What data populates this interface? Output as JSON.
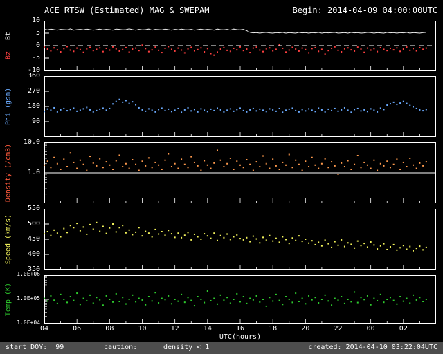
{
  "header": {
    "title": "ACE RTSW (Estimated) MAG & SWEPAM",
    "begin": "Begin: 2014-04-09 04:00:00UTC"
  },
  "footer": {
    "start_doy": "start DOY:  99",
    "caution_label": "caution:",
    "caution_value": "density < 1",
    "created": "created: 2014-04-10 03:22:04UTC"
  },
  "colors": {
    "background": "#000000",
    "frame": "#ffffff",
    "bt": "#f0f0f0",
    "bz": "#ff4040",
    "phi": "#6babff",
    "density": "#ff9a4d",
    "density_label": "#ff5a3c",
    "speed": "#f2f25a",
    "temp": "#2ecc2e",
    "footer_bg": "#4d4d4d",
    "caution": "#ff4040"
  },
  "xaxis": {
    "label": "UTC(hours)",
    "range": [
      4,
      28
    ],
    "x_start": 4.0,
    "x_step": 0.2,
    "n_points": 118,
    "tick_values": [
      4,
      6,
      8,
      10,
      12,
      14,
      16,
      18,
      20,
      22,
      24,
      26
    ],
    "tick_labels": [
      "04",
      "06",
      "08",
      "10",
      "12",
      "14",
      "16",
      "18",
      "20",
      "22",
      "00",
      "02"
    ]
  },
  "chart_data": [
    {
      "id": "mag",
      "type": "scatter",
      "ylabel": [
        {
          "text": "Bt",
          "color": "#f0f0f0"
        },
        {
          "text": "Bz",
          "color": "#ff4040"
        }
      ],
      "yrange": [
        -10,
        10
      ],
      "log": false,
      "yticks": [
        {
          "v": 10,
          "label": "10"
        },
        {
          "v": 5,
          "label": "5"
        },
        {
          "v": 0,
          "label": "0"
        },
        {
          "v": -5,
          "label": "-5"
        },
        {
          "v": -10,
          "label": "-10"
        }
      ],
      "ref_lines": [
        {
          "v": 0,
          "style": "dashed"
        }
      ],
      "series": [
        {
          "name": "Bt",
          "color": "#f0f0f0",
          "line": true,
          "values": [
            6.5,
            6.3,
            6.6,
            6.4,
            6.2,
            6.5,
            6.4,
            6.3,
            6.7,
            6.2,
            6.4,
            6.5,
            6.3,
            6.6,
            6.4,
            6.2,
            6.4,
            6.6,
            6.3,
            6.5,
            6.4,
            6.2,
            6.6,
            6.5,
            6.3,
            6.4,
            6.7,
            6.4,
            6.2,
            6.5,
            6.3,
            6.4,
            6.6,
            6.2,
            6.5,
            6.4,
            6.3,
            6.6,
            6.4,
            6.2,
            6.5,
            6.3,
            6.6,
            6.4,
            6.3,
            6.5,
            6.2,
            6.4,
            6.6,
            6.3,
            6.5,
            6.4,
            6.2,
            6.6,
            6.4,
            6.3,
            6.5,
            6.2,
            6.6,
            6.4,
            6.3,
            6.5,
            6.0,
            5.3,
            5.1,
            5.2,
            5.0,
            5.2,
            5.3,
            5.1,
            5.0,
            5.2,
            5.1,
            5.3,
            5.0,
            5.2,
            5.1,
            5.0,
            5.3,
            5.1,
            5.2,
            5.0,
            5.2,
            5.1,
            5.3,
            5.0,
            5.2,
            5.1,
            5.2,
            5.3,
            5.0,
            5.1,
            5.2,
            5.0,
            5.3,
            5.1,
            5.2,
            5.0,
            5.1,
            5.3,
            5.2,
            5.0,
            5.2,
            5.1,
            5.0,
            5.3,
            5.1,
            5.2,
            5.0,
            5.2,
            5.1,
            5.3,
            5.0,
            5.2,
            5.1,
            5.0,
            5.2,
            5.3
          ]
        },
        {
          "name": "Bz",
          "color": "#ff4040",
          "values": [
            -0.6,
            -1.4,
            -2.1,
            -0.9,
            -1.7,
            -2.5,
            -1.2,
            -0.4,
            -1.8,
            -2.3,
            -1.0,
            -1.6,
            -2.7,
            -1.3,
            -0.7,
            -2.0,
            -1.5,
            -0.9,
            -2.4,
            -1.1,
            -1.8,
            -0.5,
            -1.3,
            -2.2,
            -1.6,
            -0.8,
            -2.6,
            -1.4,
            -1.0,
            -2.0,
            0.2,
            -1.2,
            -2.4,
            -1.7,
            -0.6,
            -1.9,
            -2.8,
            -1.1,
            -0.4,
            -1.5,
            -2.2,
            -1.0,
            -1.8,
            -2.9,
            -1.3,
            -0.7,
            -2.1,
            -1.6,
            -0.9,
            -2.5,
            -1.2,
            -3.2,
            -3.8,
            -2.6,
            -1.4,
            -0.8,
            -1.9,
            -2.3,
            -1.1,
            -1.7,
            -0.5,
            -2.0,
            -1.4,
            -2.8,
            -1.0,
            -0.6,
            -1.8,
            -2.4,
            -1.3,
            -0.9,
            -2.1,
            -1.5,
            0.4,
            -1.1,
            -2.6,
            -1.8,
            -0.7,
            -1.4,
            -2.2,
            -1.0,
            -1.6,
            -2.9,
            -1.2,
            -0.8,
            -2.3,
            -1.5,
            -3.4,
            -2.0,
            -1.1,
            -0.5,
            -1.9,
            -2.5,
            -1.3,
            -0.9,
            -1.7,
            -2.2,
            -0.6,
            -1.4,
            -2.7,
            -1.0,
            -1.8,
            -1.2,
            -2.4,
            -0.8,
            -1.5,
            -2.0,
            -1.1,
            -1.7,
            -0.9,
            -2.3,
            -1.4,
            -0.6,
            -1.9,
            -1.2,
            -2.1,
            -0.8,
            -1.5,
            -1.0
          ]
        }
      ]
    },
    {
      "id": "phi",
      "type": "scatter",
      "ylabel": "Phi (gsm)",
      "label_color": "#6babff",
      "yrange": [
        0,
        360
      ],
      "log": false,
      "yticks": [
        {
          "v": 360,
          "label": "360"
        },
        {
          "v": 270,
          "label": "270"
        },
        {
          "v": 180,
          "label": "180"
        },
        {
          "v": 90,
          "label": "90"
        }
      ],
      "series": [
        {
          "name": "Phi",
          "color": "#6babff",
          "values": [
            150,
            165,
            158,
            172,
            148,
            160,
            168,
            155,
            162,
            170,
            152,
            158,
            166,
            174,
            160,
            148,
            156,
            164,
            170,
            158,
            168,
            195,
            210,
            222,
            205,
            215,
            198,
            208,
            190,
            172,
            160,
            152,
            166,
            158,
            148,
            162,
            170,
            156,
            164,
            150,
            158,
            168,
            146,
            160,
            172,
            154,
            162,
            148,
            166,
            158,
            150,
            164,
            156,
            170,
            160,
            148,
            158,
            166,
            152,
            162,
            170,
            156,
            148,
            160,
            168,
            154,
            164,
            158,
            150,
            166,
            160,
            152,
            168,
            146,
            158,
            164,
            170,
            156,
            148,
            162,
            154,
            166,
            158,
            150,
            170,
            160,
            148,
            164,
            156,
            168,
            152,
            160,
            172,
            158,
            146,
            162,
            168,
            154,
            160,
            150,
            166,
            158,
            148,
            170,
            162,
            188,
            196,
            205,
            192,
            200,
            210,
            198,
            186,
            178,
            168,
            160,
            155,
            162
          ]
        }
      ]
    },
    {
      "id": "density",
      "type": "scatter",
      "ylabel": "Density (/cm3)",
      "label_color": "#ff5a3c",
      "yrange": [
        0.1,
        10
      ],
      "log": true,
      "yticks": [
        {
          "v": 10,
          "label": "10.0"
        },
        {
          "v": 1,
          "label": "1.0"
        }
      ],
      "ref_lines": [
        {
          "v": 1,
          "style": "solid"
        }
      ],
      "series": [
        {
          "name": "Density",
          "color": "#ff9a4d",
          "values": [
            1.8,
            2.4,
            1.5,
            3.2,
            2.0,
            1.3,
            2.8,
            1.6,
            4.5,
            2.2,
            1.4,
            2.6,
            1.9,
            1.2,
            3.5,
            2.1,
            1.7,
            2.9,
            1.5,
            2.3,
            1.8,
            1.3,
            2.5,
            3.8,
            1.6,
            2.0,
            1.4,
            2.7,
            1.9,
            1.2,
            2.4,
            1.7,
            3.1,
            1.5,
            2.2,
            1.8,
            1.3,
            2.6,
            4.2,
            1.6,
            2.0,
            1.4,
            2.8,
            1.9,
            1.5,
            3.4,
            2.2,
            1.7,
            1.2,
            2.5,
            1.8,
            1.4,
            2.1,
            5.5,
            2.6,
            1.6,
            2.0,
            3.0,
            1.3,
            2.4,
            1.8,
            1.5,
            2.7,
            1.9,
            1.2,
            2.3,
            1.6,
            3.6,
            2.0,
            1.4,
            2.8,
            1.7,
            1.3,
            2.2,
            1.8,
            4.0,
            1.5,
            2.6,
            1.9,
            1.2,
            2.4,
            1.6,
            3.2,
            1.8,
            1.4,
            2.0,
            2.9,
            1.5,
            2.3,
            1.7,
            0.9,
            2.1,
            1.6,
            2.5,
            1.3,
            1.9,
            3.7,
            1.5,
            2.2,
            1.8,
            1.4,
            2.6,
            1.2,
            2.0,
            1.7,
            2.4,
            1.5,
            1.9,
            2.8,
            1.3,
            2.2,
            1.6,
            3.0,
            1.8,
            1.4,
            2.1,
            1.7,
            2.3
          ]
        }
      ]
    },
    {
      "id": "speed",
      "type": "scatter",
      "ylabel": "Speed (km/s)",
      "label_color": "#f2f25a",
      "yrange": [
        350,
        550
      ],
      "log": false,
      "yticks": [
        {
          "v": 550,
          "label": "550"
        },
        {
          "v": 500,
          "label": "500"
        },
        {
          "v": 450,
          "label": "450"
        },
        {
          "v": 400,
          "label": "400"
        },
        {
          "v": 350,
          "label": "350"
        }
      ],
      "series": [
        {
          "name": "Speed",
          "color": "#f2f25a",
          "values": [
            468,
            475,
            462,
            480,
            470,
            458,
            485,
            472,
            495,
            488,
            502,
            478,
            490,
            466,
            498,
            483,
            505,
            476,
            492,
            469,
            487,
            500,
            474,
            488,
            495,
            471,
            480,
            465,
            473,
            488,
            461,
            476,
            470,
            458,
            482,
            467,
            475,
            463,
            479,
            468,
            456,
            470,
            455,
            463,
            472,
            448,
            466,
            458,
            450,
            468,
            461,
            453,
            470,
            446,
            462,
            455,
            467,
            449,
            458,
            464,
            452,
            448,
            455,
            442,
            460,
            451,
            438,
            456,
            447,
            462,
            444,
            453,
            440,
            458,
            449,
            436,
            454,
            446,
            461,
            443,
            450,
            437,
            445,
            432,
            440,
            428,
            447,
            435,
            423,
            442,
            430,
            448,
            426,
            438,
            433,
            421,
            444,
            429,
            436,
            424,
            441,
            431,
            418,
            428,
            435,
            416,
            425,
            432,
            414,
            422,
            429,
            417,
            426,
            412,
            420,
            427,
            415,
            423
          ]
        }
      ]
    },
    {
      "id": "temp",
      "type": "scatter",
      "ylabel": "Temp (K)",
      "label_color": "#2ecc2e",
      "yrange": [
        10000.0,
        1000000.0
      ],
      "log": true,
      "yticks": [
        {
          "v": 1000000.0,
          "label": "1.0E+06"
        },
        {
          "v": 100000.0,
          "label": "1.0E+05"
        },
        {
          "v": 10000.0,
          "label": "1.0E+04"
        }
      ],
      "series": [
        {
          "name": "Temp",
          "color": "#2ecc2e",
          "values": [
            110000.0,
            85000.0,
            140000.0,
            92000.0,
            68000.0,
            160000.0,
            100000.0,
            75000.0,
            130000.0,
            90000.0,
            180000.0,
            62000.0,
            110000.0,
            88000.0,
            150000.0,
            70000.0,
            120000.0,
            96000.0,
            58000.0,
            140000.0,
            100000.0,
            78000.0,
            170000.0,
            82000.0,
            120000.0,
            65000.0,
            100000.0,
            150000.0,
            80000.0,
            110000.0,
            94000.0,
            60000.0,
            130000.0,
            86000.0,
            190000.0,
            72000.0,
            110000.0,
            98000.0,
            140000.0,
            66000.0,
            100000.0,
            84000.0,
            160000.0,
            76000.0,
            120000.0,
            90000.0,
            55000.0,
            130000.0,
            100000.0,
            74000.0,
            220000.0,
            88000.0,
            110000.0,
            64000.0,
            150000.0,
            92000.0,
            120000.0,
            70000.0,
            100000.0,
            170000.0,
            80000.0,
            130000.0,
            68000.0,
            110000.0,
            95000.0,
            140000.0,
            78000.0,
            100000.0,
            52000.0,
            120000.0,
            85000.0,
            160000.0,
            90000.0,
            62000.0,
            130000.0,
            100000.0,
            75000.0,
            180000.0,
            82000.0,
            110000.0,
            66000.0,
            140000.0,
            96000.0,
            120000.0,
            72000.0,
            100000.0,
            150000.0,
            86000.0,
            58000.0,
            110000.0,
            92000.0,
            130000.0,
            68000.0,
            100000.0,
            80000.0,
            200000.0,
            74000.0,
            120000.0,
            98000.0,
            140000.0,
            60000.0,
            110000.0,
            88000.0,
            160000.0,
            76000.0,
            100000.0,
            120000.0,
            90000.0,
            64000.0,
            130000.0,
            84000.0,
            110000.0,
            70000.0,
            150000.0,
            94000.0,
            120000.0,
            82000.0,
            100000.0
          ]
        }
      ]
    }
  ]
}
